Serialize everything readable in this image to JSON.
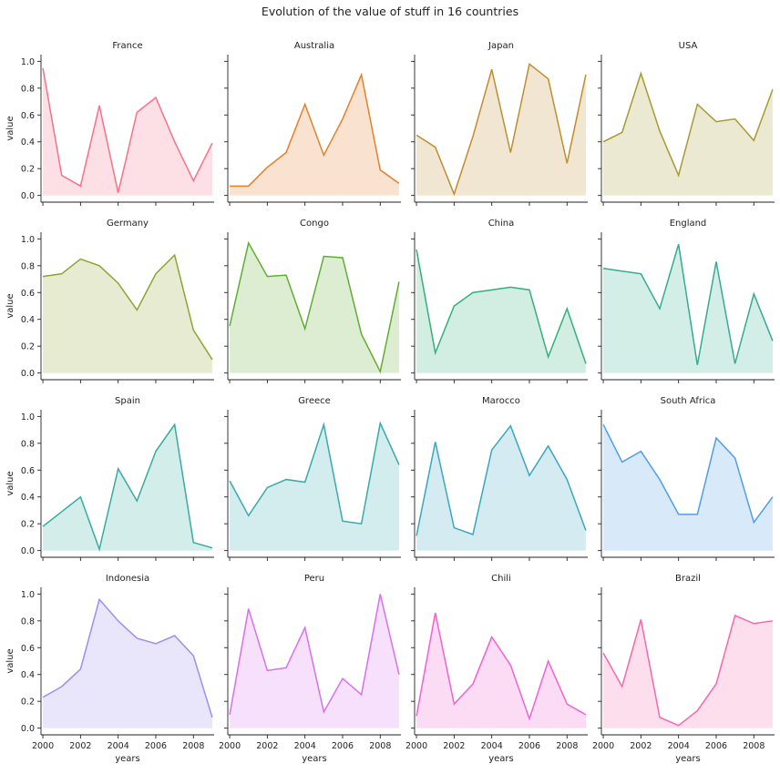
{
  "chart_data": {
    "type": "area",
    "title": "Evolution of the value of stuff in 16 countries",
    "xlabel": "years",
    "ylabel": "value",
    "x": [
      2000,
      2001,
      2002,
      2003,
      2004,
      2005,
      2006,
      2007,
      2008,
      2009
    ],
    "xticks": [
      "2000",
      "2002",
      "2004",
      "2006",
      "2008"
    ],
    "yticks": [
      "0.0",
      "0.2",
      "0.4",
      "0.6",
      "0.8",
      "1.0"
    ],
    "xlim": [
      1999.9,
      2009.1
    ],
    "ylim": [
      -0.05,
      1.05
    ],
    "layout": "4x4 small multiples, shared axes, filled area under each line",
    "series": [
      {
        "name": "France",
        "color": "#f77189",
        "values": [
          0.95,
          0.15,
          0.07,
          0.67,
          0.02,
          0.62,
          0.73,
          0.4,
          0.11,
          0.39
        ]
      },
      {
        "name": "Australia",
        "color": "#e5802b",
        "values": [
          0.07,
          0.07,
          0.21,
          0.32,
          0.68,
          0.3,
          0.57,
          0.9,
          0.19,
          0.09
        ]
      },
      {
        "name": "Japan",
        "color": "#c08d2f",
        "values": [
          0.45,
          0.36,
          0.01,
          0.44,
          0.94,
          0.32,
          0.98,
          0.87,
          0.24,
          0.9
        ]
      },
      {
        "name": "USA",
        "color": "#a79a31",
        "values": [
          0.4,
          0.47,
          0.91,
          0.48,
          0.15,
          0.68,
          0.55,
          0.57,
          0.41,
          0.79
        ]
      },
      {
        "name": "Germany",
        "color": "#8ba431",
        "values": [
          0.72,
          0.74,
          0.85,
          0.8,
          0.67,
          0.47,
          0.74,
          0.88,
          0.32,
          0.1
        ]
      },
      {
        "name": "Congo",
        "color": "#5fae32",
        "values": [
          0.35,
          0.97,
          0.72,
          0.73,
          0.33,
          0.87,
          0.86,
          0.29,
          0.01,
          0.68
        ]
      },
      {
        "name": "China",
        "color": "#33b07a",
        "values": [
          0.92,
          0.15,
          0.5,
          0.6,
          0.62,
          0.64,
          0.62,
          0.12,
          0.48,
          0.07
        ]
      },
      {
        "name": "England",
        "color": "#35ac92",
        "values": [
          0.78,
          0.76,
          0.74,
          0.48,
          0.96,
          0.06,
          0.83,
          0.07,
          0.59,
          0.24
        ]
      },
      {
        "name": "Spain",
        "color": "#37aba2",
        "values": [
          0.18,
          0.29,
          0.4,
          0.01,
          0.61,
          0.37,
          0.74,
          0.94,
          0.06,
          0.02
        ]
      },
      {
        "name": "Greece",
        "color": "#38a9af",
        "values": [
          0.52,
          0.26,
          0.47,
          0.53,
          0.51,
          0.94,
          0.22,
          0.2,
          0.95,
          0.64
        ]
      },
      {
        "name": "Marocco",
        "color": "#39a7bd",
        "values": [
          0.11,
          0.81,
          0.17,
          0.12,
          0.75,
          0.93,
          0.56,
          0.78,
          0.53,
          0.15
        ]
      },
      {
        "name": "South Africa",
        "color": "#4f9ee8",
        "values": [
          0.94,
          0.66,
          0.74,
          0.53,
          0.27,
          0.27,
          0.84,
          0.69,
          0.21,
          0.4
        ]
      },
      {
        "name": "Indonesia",
        "color": "#9b8ff0",
        "values": [
          0.23,
          0.31,
          0.44,
          0.96,
          0.8,
          0.67,
          0.63,
          0.69,
          0.54,
          0.08
        ]
      },
      {
        "name": "Peru",
        "color": "#d571f0",
        "values": [
          0.1,
          0.89,
          0.43,
          0.45,
          0.75,
          0.12,
          0.37,
          0.25,
          1.0,
          0.4
        ]
      },
      {
        "name": "Chili",
        "color": "#f261d0",
        "values": [
          0.09,
          0.86,
          0.18,
          0.33,
          0.68,
          0.47,
          0.07,
          0.5,
          0.18,
          0.1
        ]
      },
      {
        "name": "Brazil",
        "color": "#f667ad",
        "values": [
          0.56,
          0.31,
          0.81,
          0.08,
          0.02,
          0.13,
          0.33,
          0.84,
          0.78,
          0.8
        ]
      }
    ]
  }
}
